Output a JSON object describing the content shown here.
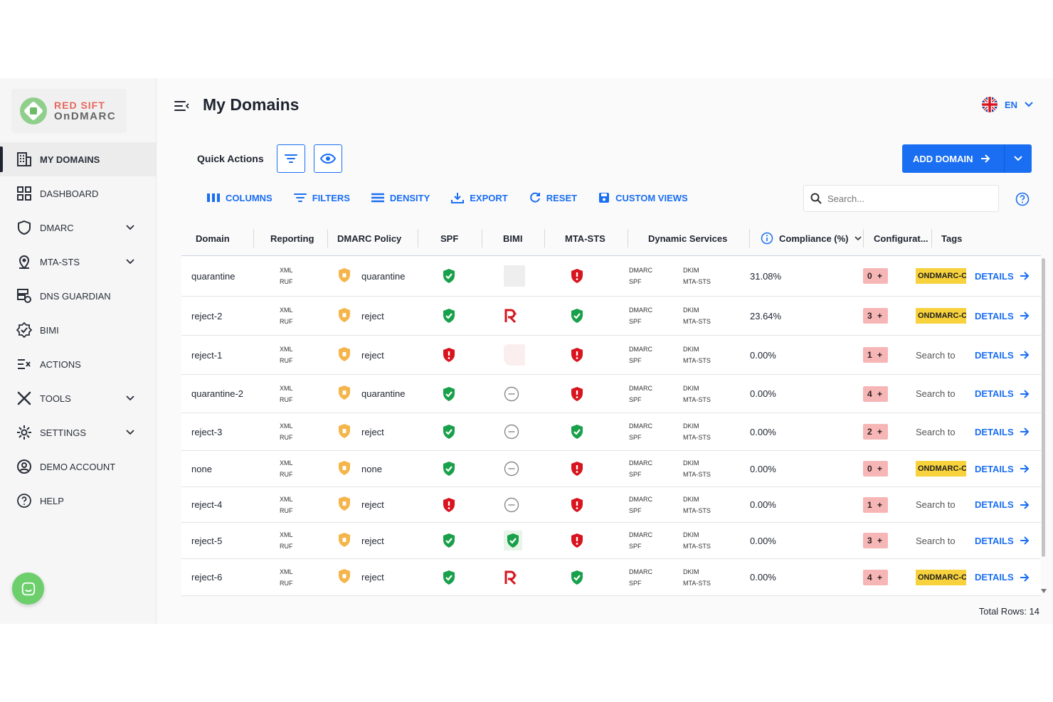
{
  "brand": {
    "line1": "RED SIFT",
    "line2": "OnDMARC"
  },
  "sidebar": {
    "items": [
      {
        "label": "MY DOMAINS",
        "icon": "building-icon",
        "active": true
      },
      {
        "label": "DASHBOARD",
        "icon": "dashboard-grid-icon"
      },
      {
        "label": "DMARC",
        "icon": "shield-icon",
        "expandable": true
      },
      {
        "label": "MTA-STS",
        "icon": "location-pin-icon",
        "expandable": true
      },
      {
        "label": "DNS GUARDIAN",
        "icon": "server-icon"
      },
      {
        "label": "BIMI",
        "icon": "verified-badge-icon"
      },
      {
        "label": "ACTIONS",
        "icon": "actions-list-icon"
      },
      {
        "label": "TOOLS",
        "icon": "tools-icon",
        "expandable": true
      },
      {
        "label": "SETTINGS",
        "icon": "gear-icon",
        "expandable": true
      },
      {
        "label": "DEMO ACCOUNT",
        "icon": "account-icon"
      },
      {
        "label": "HELP",
        "icon": "help-circle-icon"
      }
    ]
  },
  "header": {
    "title": "My Domains",
    "language": "EN"
  },
  "quick_actions": {
    "label": "Quick Actions"
  },
  "add_domain": {
    "label": "ADD DOMAIN"
  },
  "toolbar": {
    "columns": "COLUMNS",
    "filters": "FILTERS",
    "density": "DENSITY",
    "export": "EXPORT",
    "reset": "RESET",
    "custom_views": "CUSTOM VIEWS"
  },
  "search": {
    "placeholder": "Search..."
  },
  "table": {
    "columns": {
      "domain": "Domain",
      "reporting": "Reporting",
      "policy": "DMARC Policy",
      "spf": "SPF",
      "bimi": "BIMI",
      "mtasts": "MTA-STS",
      "dynamic": "Dynamic Services",
      "compliance": "Compliance (%)",
      "config": "Configurat...",
      "tags": "Tags"
    },
    "reporting_lines": [
      "XML",
      "RUF"
    ],
    "dynamic_lines": [
      "DMARC",
      "SPF",
      "DKIM",
      "MTA-STS"
    ],
    "details_label": "DETAILS",
    "rows": [
      {
        "domain": "quarantine",
        "policy": "quarantine",
        "spf": "ok",
        "bimi": "blank",
        "mtasts": "alert",
        "compliance": "31.08%",
        "config": "0 +",
        "tag": "ONDMARC-C",
        "tag_type": "badge"
      },
      {
        "domain": "reject-2",
        "policy": "reject",
        "spf": "ok",
        "bimi": "logo",
        "mtasts": "ok",
        "compliance": "23.64%",
        "config": "3 +",
        "tag": "ONDMARC-C",
        "tag_type": "badge"
      },
      {
        "domain": "reject-1",
        "policy": "reject",
        "spf": "alert",
        "bimi": "pink",
        "mtasts": "alert",
        "compliance": "0.00%",
        "config": "1 +",
        "tag": "Search to",
        "tag_type": "text"
      },
      {
        "domain": "quarantine-2",
        "policy": "quarantine",
        "spf": "ok",
        "bimi": "none",
        "mtasts": "alert",
        "compliance": "0.00%",
        "config": "4 +",
        "tag": "Search to",
        "tag_type": "text"
      },
      {
        "domain": "reject-3",
        "policy": "reject",
        "spf": "ok",
        "bimi": "none",
        "mtasts": "ok",
        "compliance": "0.00%",
        "config": "2 +",
        "tag": "Search to",
        "tag_type": "text"
      },
      {
        "domain": "none",
        "policy": "none",
        "spf": "ok",
        "bimi": "none",
        "mtasts": "alert",
        "compliance": "0.00%",
        "config": "0 +",
        "tag": "ONDMARC-C",
        "tag_type": "badge"
      },
      {
        "domain": "reject-4",
        "policy": "reject",
        "spf": "alert",
        "bimi": "none",
        "mtasts": "alert",
        "compliance": "0.00%",
        "config": "1 +",
        "tag": "Search to",
        "tag_type": "text"
      },
      {
        "domain": "reject-5",
        "policy": "reject",
        "spf": "ok",
        "bimi": "green",
        "mtasts": "alert",
        "compliance": "0.00%",
        "config": "3 +",
        "tag": "Search to",
        "tag_type": "text"
      },
      {
        "domain": "reject-6",
        "policy": "reject",
        "spf": "ok",
        "bimi": "logo",
        "mtasts": "ok",
        "compliance": "0.00%",
        "config": "4 +",
        "tag": "ONDMARC-C",
        "tag_type": "badge"
      }
    ]
  },
  "footer": {
    "total_rows": "Total Rows: 14"
  },
  "colors": {
    "accent": "#1a6ef2",
    "ok": "#18a04a",
    "alert": "#d8141e",
    "policy_shield": "#f5b54a",
    "tag_badge": "#f7d23d",
    "config_badge": "#f7b6b6"
  }
}
